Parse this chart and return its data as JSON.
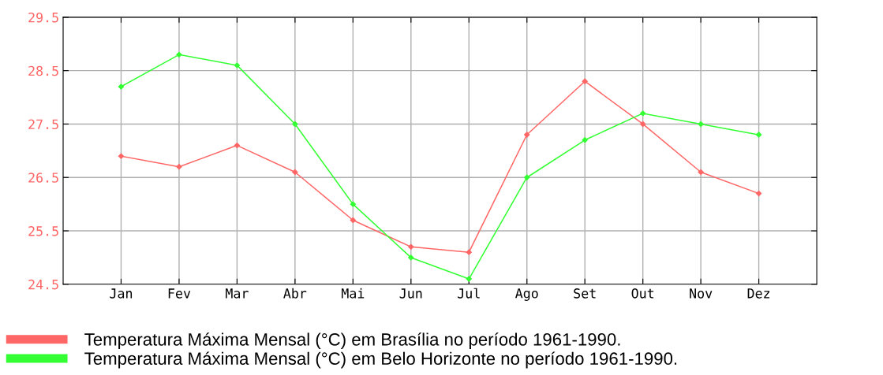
{
  "chart_data": {
    "type": "line",
    "categories": [
      "Jan",
      "Fev",
      "Mar",
      "Abr",
      "Mai",
      "Jun",
      "Jul",
      "Ago",
      "Set",
      "Out",
      "Nov",
      "Dez"
    ],
    "series": [
      {
        "name": "Temperatura Máxima Mensal (°C) em Brasília no período 1961-1990.",
        "color": "#ff6666",
        "values": [
          26.9,
          26.7,
          27.1,
          26.6,
          25.7,
          25.2,
          25.1,
          27.3,
          28.3,
          27.5,
          26.6,
          26.2
        ]
      },
      {
        "name": "Temperatura Máxima Mensal (°C) em Belo Horizonte no período 1961-1990.",
        "color": "#33ff33",
        "values": [
          28.2,
          28.8,
          28.6,
          27.5,
          26.0,
          25.0,
          24.6,
          26.5,
          27.2,
          27.7,
          27.5,
          27.3
        ]
      }
    ],
    "ylim": [
      24.5,
      29.5
    ],
    "yticks": [
      24.5,
      25.5,
      26.5,
      27.5,
      28.5,
      29.5
    ],
    "grid": true,
    "legend": "bottom",
    "marker": "diamond",
    "line_style": "solid"
  }
}
